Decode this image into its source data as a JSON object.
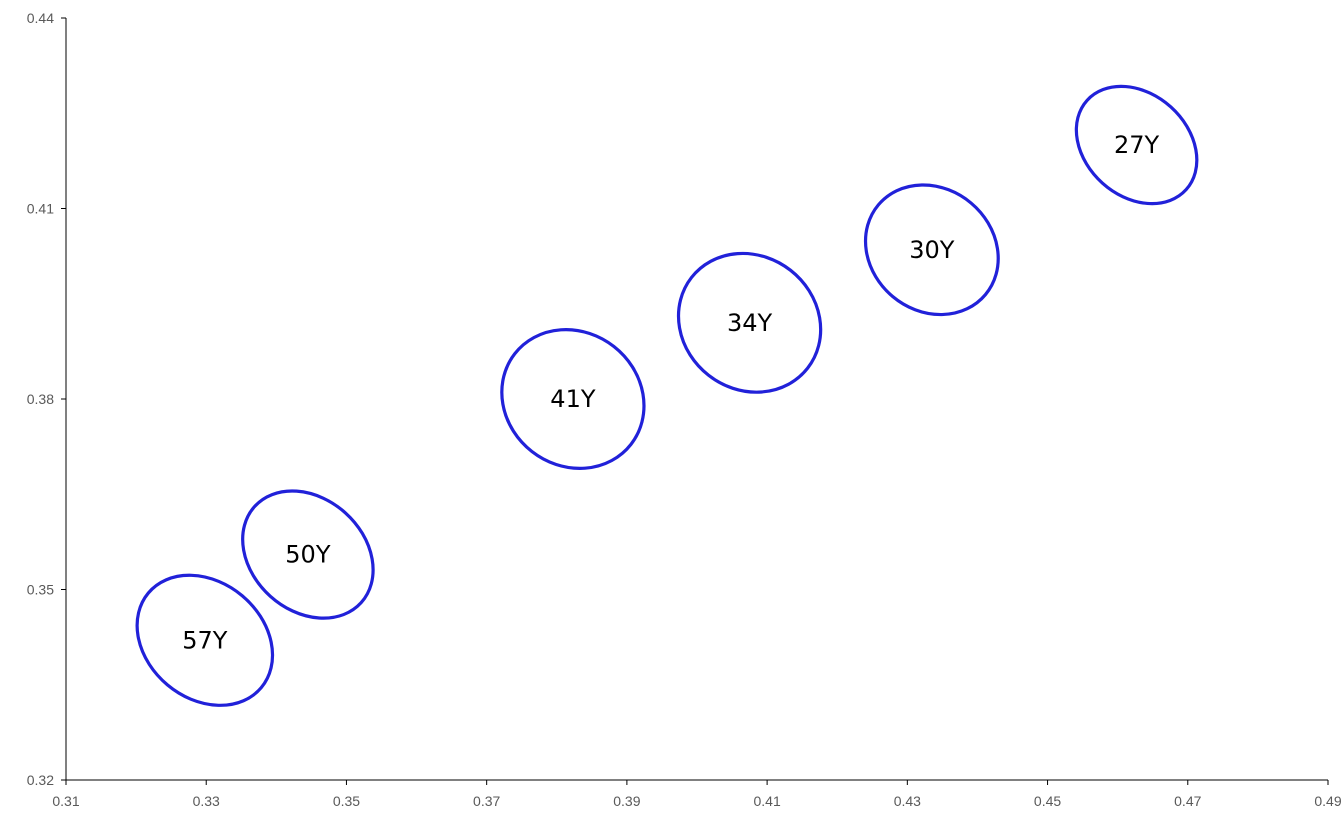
{
  "chart_data": {
    "type": "scatter",
    "title": "",
    "xlabel": "",
    "ylabel": "",
    "xlim": [
      0.31,
      0.49
    ],
    "ylim": [
      0.32,
      0.44
    ],
    "x_ticks": [
      "0.31",
      "0.33",
      "0.35",
      "0.37",
      "0.39",
      "0.41",
      "0.43",
      "0.45",
      "0.47",
      "0.49"
    ],
    "y_ticks": [
      "0.32",
      "0.35",
      "0.38",
      "0.41",
      "0.44"
    ],
    "grid": false,
    "legend": "none",
    "colors": {
      "ellipse_stroke": "#2121d9",
      "axis": "#000000",
      "tick_text": "#595959"
    },
    "ellipses": [
      {
        "label": "57Y",
        "cx": 0.3298,
        "cy": 0.342,
        "rx": 0.0083,
        "ry": 0.0116,
        "angle_deg": -50
      },
      {
        "label": "50Y",
        "cx": 0.3445,
        "cy": 0.3555,
        "rx": 0.008,
        "ry": 0.0113,
        "angle_deg": -48
      },
      {
        "label": "41Y",
        "cx": 0.3823,
        "cy": 0.38,
        "rx": 0.0095,
        "ry": 0.0116,
        "angle_deg": -52
      },
      {
        "label": "34Y",
        "cx": 0.4075,
        "cy": 0.392,
        "rx": 0.0095,
        "ry": 0.0116,
        "angle_deg": -52
      },
      {
        "label": "30Y",
        "cx": 0.4335,
        "cy": 0.4035,
        "rx": 0.0087,
        "ry": 0.011,
        "angle_deg": -50
      },
      {
        "label": "27Y",
        "cx": 0.4627,
        "cy": 0.42,
        "rx": 0.0073,
        "ry": 0.0105,
        "angle_deg": -48
      }
    ]
  }
}
